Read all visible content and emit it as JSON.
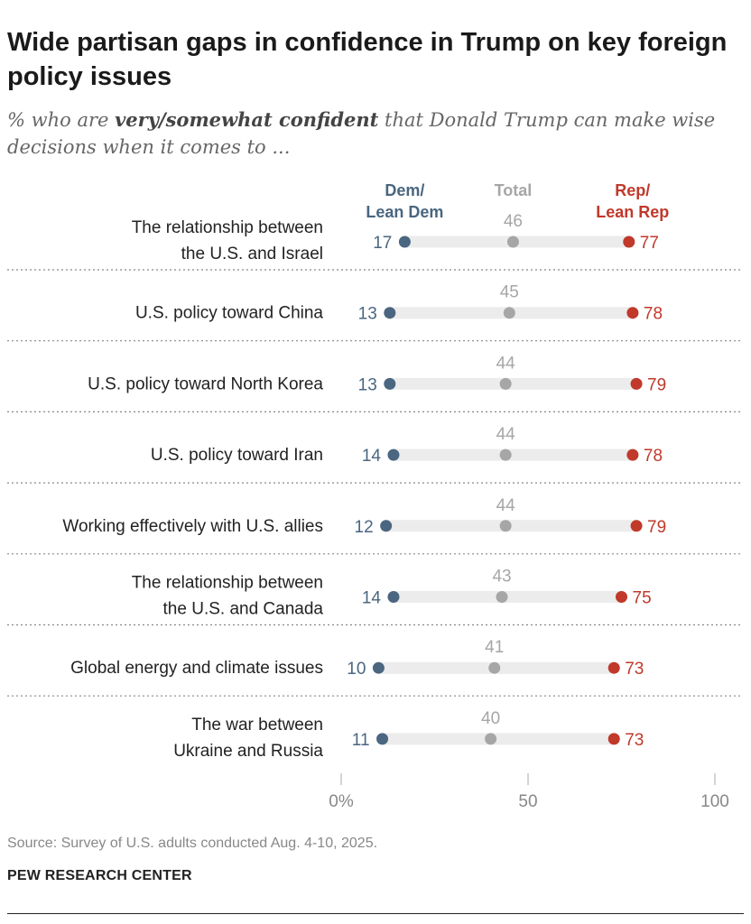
{
  "title": "Wide partisan gaps in confidence in Trump on key foreign policy issues",
  "subtitle": {
    "prefix": "% who are ",
    "emphasis": "very/somewhat confident",
    "suffix": " that Donald Trump can make wise decisions when it comes to ..."
  },
  "source": "Source: Survey of U.S. adults conducted Aug. 4-10, 2025.",
  "brand": "PEW RESEARCH CENTER",
  "colors": {
    "dem": "#4a6680",
    "total": "#a6a6a6",
    "rep": "#c0392b",
    "track": "#ececec",
    "divider": "#888888"
  },
  "chart_data": {
    "type": "dot",
    "legend": [
      {
        "key": "dem",
        "lines": [
          "Dem/",
          "Lean Dem"
        ]
      },
      {
        "key": "total",
        "lines": [
          "Total"
        ]
      },
      {
        "key": "rep",
        "lines": [
          "Rep/",
          "Lean Rep"
        ]
      }
    ],
    "categories": [
      [
        "The relationship between",
        "the U.S. and Israel"
      ],
      [
        "U.S. policy toward China"
      ],
      [
        "U.S. policy toward North Korea"
      ],
      [
        "U.S. policy toward Iran"
      ],
      [
        "Working effectively with U.S. allies"
      ],
      [
        "The relationship between",
        "the U.S. and Canada"
      ],
      [
        "Global energy and climate issues"
      ],
      [
        "The war between",
        "Ukraine and Russia"
      ]
    ],
    "series": [
      {
        "name": "Dem/Lean Dem",
        "key": "dem",
        "values": [
          17,
          13,
          13,
          14,
          12,
          14,
          10,
          11
        ]
      },
      {
        "name": "Total",
        "key": "total",
        "values": [
          46,
          45,
          44,
          44,
          44,
          43,
          41,
          40
        ]
      },
      {
        "name": "Rep/Lean Rep",
        "key": "rep",
        "values": [
          77,
          78,
          79,
          78,
          79,
          75,
          73,
          73
        ]
      }
    ],
    "xlim": [
      0,
      100
    ],
    "xticks": [
      0,
      50,
      100
    ],
    "xtick_labels": [
      "0%",
      "50",
      "100"
    ]
  }
}
